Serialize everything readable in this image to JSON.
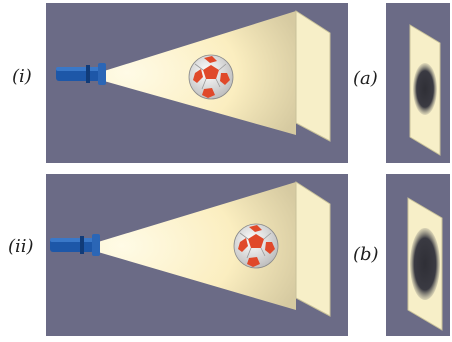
{
  "labels": {
    "setup_1": "(i)",
    "setup_2": "(ii)",
    "shadow_1": "(a)",
    "shadow_2": "(b)"
  },
  "colors": {
    "panel": "#6b6b86",
    "panel_border": "#5d5d77",
    "beam": "#fff3c4",
    "screen": "#f7efc8",
    "screen_edge": "#c9c29a",
    "torch": "#1d57a8",
    "ball_patch": "#e0492a",
    "shadow": "#3a3a42"
  },
  "scenes": [
    {
      "id": "setup-1",
      "ball_position": "middle"
    },
    {
      "id": "setup-2",
      "ball_position": "near-screen"
    }
  ],
  "shadows": [
    {
      "id": "shadow-a",
      "size": "smaller"
    },
    {
      "id": "shadow-b",
      "size": "larger"
    }
  ]
}
